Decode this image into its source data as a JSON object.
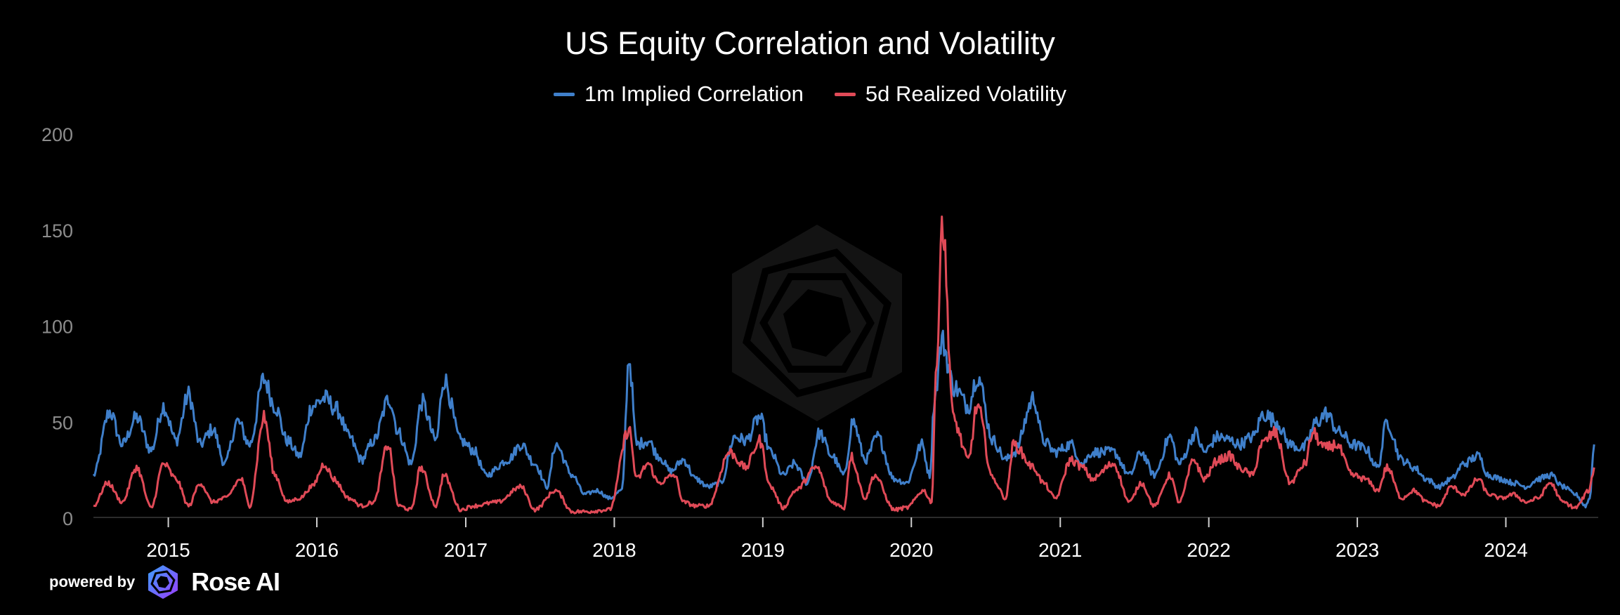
{
  "chart_data": {
    "type": "line",
    "title": "US Equity Correlation and Volatility",
    "xlabel": "",
    "ylabel": "",
    "ylim": [
      0,
      200
    ],
    "xlim": [
      "2014-07-01",
      "2024-08-15"
    ],
    "yticks": [
      "0",
      "50",
      "100",
      "150",
      "200"
    ],
    "xticks": [
      "2015",
      "2016",
      "2017",
      "2018",
      "2019",
      "2020",
      "2021",
      "2022",
      "2023",
      "2024"
    ],
    "grid": false,
    "legend_position": "top-center",
    "series": [
      {
        "name": "1m Implied Correlation",
        "color": "#3f7fca",
        "points": [
          [
            "2014-07-01",
            22
          ],
          [
            "2014-08-10",
            55
          ],
          [
            "2014-09-10",
            38
          ],
          [
            "2014-10-15",
            52
          ],
          [
            "2014-11-20",
            35
          ],
          [
            "2014-12-20",
            58
          ],
          [
            "2015-01-20",
            40
          ],
          [
            "2015-02-20",
            64
          ],
          [
            "2015-03-20",
            38
          ],
          [
            "2015-04-20",
            46
          ],
          [
            "2015-05-20",
            28
          ],
          [
            "2015-06-20",
            50
          ],
          [
            "2015-07-20",
            38
          ],
          [
            "2015-08-24",
            72
          ],
          [
            "2015-09-20",
            58
          ],
          [
            "2015-10-20",
            40
          ],
          [
            "2015-11-20",
            32
          ],
          [
            "2015-12-20",
            58
          ],
          [
            "2016-01-20",
            62
          ],
          [
            "2016-02-20",
            56
          ],
          [
            "2016-03-20",
            42
          ],
          [
            "2016-04-20",
            30
          ],
          [
            "2016-05-20",
            40
          ],
          [
            "2016-06-27",
            62
          ],
          [
            "2016-07-20",
            44
          ],
          [
            "2016-08-20",
            28
          ],
          [
            "2016-09-15",
            60
          ],
          [
            "2016-10-20",
            40
          ],
          [
            "2016-11-08",
            72
          ],
          [
            "2016-12-20",
            40
          ],
          [
            "2017-01-20",
            35
          ],
          [
            "2017-02-20",
            22
          ],
          [
            "2017-04-15",
            30
          ],
          [
            "2017-05-17",
            38
          ],
          [
            "2017-06-20",
            28
          ],
          [
            "2017-07-20",
            16
          ],
          [
            "2017-08-10",
            38
          ],
          [
            "2017-09-20",
            22
          ],
          [
            "2017-10-20",
            12
          ],
          [
            "2017-11-20",
            14
          ],
          [
            "2017-12-20",
            10
          ],
          [
            "2018-01-20",
            14
          ],
          [
            "2018-02-06",
            83
          ],
          [
            "2018-02-25",
            38
          ],
          [
            "2018-03-25",
            40
          ],
          [
            "2018-04-20",
            32
          ],
          [
            "2018-05-20",
            24
          ],
          [
            "2018-06-20",
            30
          ],
          [
            "2018-07-20",
            20
          ],
          [
            "2018-08-20",
            16
          ],
          [
            "2018-09-20",
            18
          ],
          [
            "2018-10-24",
            42
          ],
          [
            "2018-11-20",
            40
          ],
          [
            "2018-12-24",
            52
          ],
          [
            "2019-01-20",
            34
          ],
          [
            "2019-02-20",
            22
          ],
          [
            "2019-03-20",
            28
          ],
          [
            "2019-04-20",
            18
          ],
          [
            "2019-05-20",
            44
          ],
          [
            "2019-06-20",
            32
          ],
          [
            "2019-07-20",
            22
          ],
          [
            "2019-08-10",
            50
          ],
          [
            "2019-09-10",
            30
          ],
          [
            "2019-10-10",
            42
          ],
          [
            "2019-11-20",
            20
          ],
          [
            "2019-12-20",
            18
          ],
          [
            "2020-01-27",
            38
          ],
          [
            "2020-02-15",
            22
          ],
          [
            "2020-02-28",
            64
          ],
          [
            "2020-03-16",
            92
          ],
          [
            "2020-04-15",
            68
          ],
          [
            "2020-05-20",
            58
          ],
          [
            "2020-06-11",
            74
          ],
          [
            "2020-07-20",
            40
          ],
          [
            "2020-08-20",
            30
          ],
          [
            "2020-09-10",
            34
          ],
          [
            "2020-10-28",
            62
          ],
          [
            "2020-11-20",
            40
          ],
          [
            "2020-12-20",
            34
          ],
          [
            "2021-01-27",
            38
          ],
          [
            "2021-02-25",
            28
          ],
          [
            "2021-03-20",
            34
          ],
          [
            "2021-05-12",
            34
          ],
          [
            "2021-06-20",
            22
          ],
          [
            "2021-07-19",
            34
          ],
          [
            "2021-08-20",
            22
          ],
          [
            "2021-09-28",
            42
          ],
          [
            "2021-10-20",
            28
          ],
          [
            "2021-11-30",
            44
          ],
          [
            "2021-12-20",
            34
          ],
          [
            "2022-01-24",
            42
          ],
          [
            "2022-02-25",
            40
          ],
          [
            "2022-03-15",
            38
          ],
          [
            "2022-04-20",
            42
          ],
          [
            "2022-05-15",
            54
          ],
          [
            "2022-06-15",
            50
          ],
          [
            "2022-07-20",
            38
          ],
          [
            "2022-08-20",
            36
          ],
          [
            "2022-09-25",
            50
          ],
          [
            "2022-10-15",
            54
          ],
          [
            "2022-11-20",
            44
          ],
          [
            "2022-12-20",
            38
          ],
          [
            "2023-01-20",
            36
          ],
          [
            "2023-02-20",
            26
          ],
          [
            "2023-03-15",
            50
          ],
          [
            "2023-04-20",
            30
          ],
          [
            "2023-05-20",
            26
          ],
          [
            "2023-06-20",
            20
          ],
          [
            "2023-07-20",
            16
          ],
          [
            "2023-08-20",
            20
          ],
          [
            "2023-09-20",
            28
          ],
          [
            "2023-10-25",
            32
          ],
          [
            "2023-11-20",
            22
          ],
          [
            "2023-12-20",
            20
          ],
          [
            "2024-01-20",
            18
          ],
          [
            "2024-02-20",
            16
          ],
          [
            "2024-03-20",
            20
          ],
          [
            "2024-04-20",
            22
          ],
          [
            "2024-05-20",
            16
          ],
          [
            "2024-06-20",
            12
          ],
          [
            "2024-07-15",
            6
          ],
          [
            "2024-07-25",
            10
          ],
          [
            "2024-08-05",
            38
          ]
        ]
      },
      {
        "name": "5d Realized Volatility",
        "color": "#e04a57",
        "points": [
          [
            "2014-07-01",
            6
          ],
          [
            "2014-08-05",
            18
          ],
          [
            "2014-09-10",
            8
          ],
          [
            "2014-10-15",
            26
          ],
          [
            "2014-11-20",
            5
          ],
          [
            "2014-12-20",
            28
          ],
          [
            "2015-01-20",
            20
          ],
          [
            "2015-02-20",
            6
          ],
          [
            "2015-03-20",
            18
          ],
          [
            "2015-04-20",
            8
          ],
          [
            "2015-05-20",
            10
          ],
          [
            "2015-06-29",
            20
          ],
          [
            "2015-07-20",
            6
          ],
          [
            "2015-08-24",
            52
          ],
          [
            "2015-09-20",
            22
          ],
          [
            "2015-10-20",
            8
          ],
          [
            "2015-11-20",
            10
          ],
          [
            "2015-12-20",
            16
          ],
          [
            "2016-01-20",
            28
          ],
          [
            "2016-02-11",
            20
          ],
          [
            "2016-03-20",
            10
          ],
          [
            "2016-04-20",
            6
          ],
          [
            "2016-05-20",
            8
          ],
          [
            "2016-06-24",
            38
          ],
          [
            "2016-07-20",
            6
          ],
          [
            "2016-08-20",
            4
          ],
          [
            "2016-09-12",
            26
          ],
          [
            "2016-10-20",
            6
          ],
          [
            "2016-11-08",
            22
          ],
          [
            "2016-12-20",
            4
          ],
          [
            "2017-01-20",
            6
          ],
          [
            "2017-03-20",
            8
          ],
          [
            "2017-05-17",
            16
          ],
          [
            "2017-06-20",
            4
          ],
          [
            "2017-08-10",
            14
          ],
          [
            "2017-09-20",
            3
          ],
          [
            "2017-10-20",
            3
          ],
          [
            "2017-12-20",
            4
          ],
          [
            "2018-02-06",
            46
          ],
          [
            "2018-02-25",
            20
          ],
          [
            "2018-03-25",
            28
          ],
          [
            "2018-04-20",
            18
          ],
          [
            "2018-05-29",
            22
          ],
          [
            "2018-06-20",
            8
          ],
          [
            "2018-07-20",
            6
          ],
          [
            "2018-08-20",
            6
          ],
          [
            "2018-10-11",
            34
          ],
          [
            "2018-11-20",
            26
          ],
          [
            "2018-12-24",
            40
          ],
          [
            "2019-01-20",
            16
          ],
          [
            "2019-02-20",
            5
          ],
          [
            "2019-03-22",
            14
          ],
          [
            "2019-05-13",
            26
          ],
          [
            "2019-06-20",
            8
          ],
          [
            "2019-07-20",
            5
          ],
          [
            "2019-08-05",
            32
          ],
          [
            "2019-09-10",
            10
          ],
          [
            "2019-10-02",
            22
          ],
          [
            "2019-11-20",
            4
          ],
          [
            "2019-12-20",
            5
          ],
          [
            "2020-01-31",
            14
          ],
          [
            "2020-02-20",
            8
          ],
          [
            "2020-03-01",
            70
          ],
          [
            "2020-03-16",
            154
          ],
          [
            "2020-04-15",
            50
          ],
          [
            "2020-05-20",
            30
          ],
          [
            "2020-06-11",
            58
          ],
          [
            "2020-07-20",
            20
          ],
          [
            "2020-08-20",
            10
          ],
          [
            "2020-09-08",
            38
          ],
          [
            "2020-10-28",
            26
          ],
          [
            "2020-11-20",
            18
          ],
          [
            "2020-12-20",
            10
          ],
          [
            "2021-01-27",
            30
          ],
          [
            "2021-02-25",
            26
          ],
          [
            "2021-03-20",
            20
          ],
          [
            "2021-05-12",
            28
          ],
          [
            "2021-06-20",
            8
          ],
          [
            "2021-07-19",
            18
          ],
          [
            "2021-08-20",
            6
          ],
          [
            "2021-09-28",
            22
          ],
          [
            "2021-10-20",
            8
          ],
          [
            "2021-11-26",
            30
          ],
          [
            "2021-12-20",
            20
          ],
          [
            "2022-01-24",
            30
          ],
          [
            "2022-02-24",
            32
          ],
          [
            "2022-03-15",
            26
          ],
          [
            "2022-04-20",
            22
          ],
          [
            "2022-05-09",
            38
          ],
          [
            "2022-06-13",
            44
          ],
          [
            "2022-07-20",
            18
          ],
          [
            "2022-08-26",
            28
          ],
          [
            "2022-09-13",
            44
          ],
          [
            "2022-10-13",
            36
          ],
          [
            "2022-11-10",
            38
          ],
          [
            "2022-12-20",
            22
          ],
          [
            "2023-01-20",
            20
          ],
          [
            "2023-02-20",
            14
          ],
          [
            "2023-03-15",
            26
          ],
          [
            "2023-04-20",
            10
          ],
          [
            "2023-05-20",
            14
          ],
          [
            "2023-06-20",
            8
          ],
          [
            "2023-07-20",
            6
          ],
          [
            "2023-08-20",
            16
          ],
          [
            "2023-09-20",
            12
          ],
          [
            "2023-10-25",
            20
          ],
          [
            "2023-11-20",
            12
          ],
          [
            "2023-12-20",
            10
          ],
          [
            "2024-01-20",
            12
          ],
          [
            "2024-02-20",
            8
          ],
          [
            "2024-03-20",
            10
          ],
          [
            "2024-04-19",
            18
          ],
          [
            "2024-05-20",
            8
          ],
          [
            "2024-06-20",
            5
          ],
          [
            "2024-07-24",
            14
          ],
          [
            "2024-08-05",
            26
          ]
        ]
      }
    ]
  },
  "footer": {
    "prefix": "powered by",
    "brand": "Rose AI"
  }
}
